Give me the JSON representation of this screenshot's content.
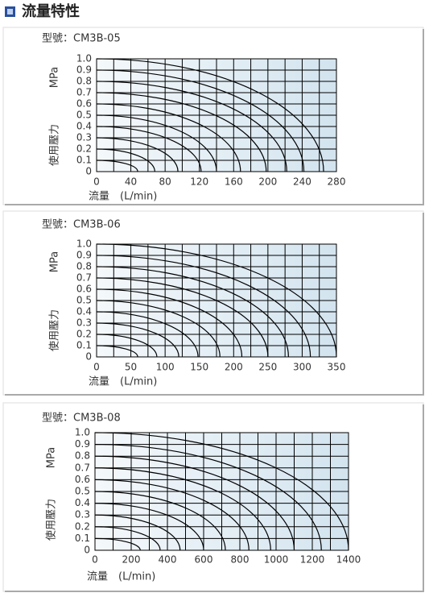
{
  "page": {
    "title": "流量特性"
  },
  "chart_data": [
    {
      "type": "line",
      "title": "型號：CM3B-05",
      "x_label": "流量　(L/min)",
      "y_unit": "MPa",
      "y_label": "使用壓力",
      "color": "#000000",
      "xlim": [
        0,
        280
      ],
      "xticks": [
        0,
        40,
        80,
        120,
        160,
        200,
        240,
        280
      ],
      "ylim": [
        0,
        1
      ],
      "yticks": [
        0,
        0.1,
        0.2,
        0.3,
        0.4,
        0.5,
        0.6,
        0.7,
        0.8,
        0.9,
        {
          "value": 1,
          "label": "1.0"
        }
      ],
      "grid": true,
      "series": [
        {
          "x": [
            0,
            48
          ],
          "values": [
            0.1,
            0
          ]
        },
        {
          "x": [
            0,
            68
          ],
          "values": [
            0.2,
            0
          ]
        },
        {
          "x": [
            0,
            95
          ],
          "values": [
            0.3,
            0
          ]
        },
        {
          "x": [
            0,
            122
          ],
          "values": [
            0.4,
            0
          ]
        },
        {
          "x": [
            0,
            140
          ],
          "values": [
            0.5,
            0
          ]
        },
        {
          "x": [
            0,
            168
          ],
          "values": [
            0.6,
            0
          ]
        },
        {
          "x": [
            0,
            198
          ],
          "values": [
            0.7,
            0
          ]
        },
        {
          "x": [
            0,
            222
          ],
          "values": [
            0.8,
            0
          ]
        },
        {
          "x": [
            0,
            242
          ],
          "values": [
            0.9,
            0
          ]
        },
        {
          "x": [
            0,
            265
          ],
          "values": [
            1,
            0
          ]
        }
      ]
    },
    {
      "type": "line",
      "title": "型號：CM3B-06",
      "x_label": "流量　(L/min)",
      "y_unit": "MPa",
      "y_label": "使用壓力",
      "color": "#000000",
      "xlim": [
        0,
        350
      ],
      "xticks": [
        0,
        50,
        100,
        150,
        200,
        250,
        300,
        350
      ],
      "ylim": [
        0,
        1
      ],
      "yticks": [
        0,
        0.1,
        0.2,
        0.3,
        0.4,
        0.5,
        0.6,
        0.7,
        0.8,
        0.9,
        {
          "value": 1,
          "label": "1.0"
        }
      ],
      "grid": true,
      "series": [
        {
          "x": [
            0,
            60
          ],
          "values": [
            0.1,
            0
          ]
        },
        {
          "x": [
            0,
            88
          ],
          "values": [
            0.2,
            0
          ]
        },
        {
          "x": [
            0,
            120
          ],
          "values": [
            0.3,
            0
          ]
        },
        {
          "x": [
            0,
            148
          ],
          "values": [
            0.4,
            0
          ]
        },
        {
          "x": [
            0,
            180
          ],
          "values": [
            0.5,
            0
          ]
        },
        {
          "x": [
            0,
            212
          ],
          "values": [
            0.6,
            0
          ]
        },
        {
          "x": [
            0,
            250
          ],
          "values": [
            0.7,
            0
          ]
        },
        {
          "x": [
            0,
            280
          ],
          "values": [
            0.8,
            0
          ]
        },
        {
          "x": [
            0,
            312
          ],
          "values": [
            0.9,
            0
          ]
        },
        {
          "x": [
            0,
            350
          ],
          "values": [
            1,
            0
          ]
        }
      ]
    },
    {
      "type": "line",
      "title": "型號：CM3B-08",
      "x_label": "流量　(L/min)",
      "y_unit": "MPa",
      "y_label": "使用壓力",
      "color": "#000000",
      "xlim": [
        0,
        1400
      ],
      "xticks": [
        0,
        200,
        400,
        600,
        800,
        1000,
        1200,
        1400
      ],
      "ylim": [
        0,
        1
      ],
      "yticks": [
        0,
        0.1,
        0.2,
        0.3,
        0.4,
        0.5,
        0.6,
        0.7,
        0.8,
        0.9,
        {
          "value": 1,
          "label": "1.0"
        }
      ],
      "grid": true,
      "series": [
        {
          "x": [
            0,
            250
          ],
          "values": [
            0.1,
            0
          ]
        },
        {
          "x": [
            0,
            360
          ],
          "values": [
            0.2,
            0
          ]
        },
        {
          "x": [
            0,
            470
          ],
          "values": [
            0.3,
            0
          ]
        },
        {
          "x": [
            0,
            600
          ],
          "values": [
            0.4,
            0
          ]
        },
        {
          "x": [
            0,
            720
          ],
          "values": [
            0.5,
            0
          ]
        },
        {
          "x": [
            0,
            850
          ],
          "values": [
            0.6,
            0
          ]
        },
        {
          "x": [
            0,
            970
          ],
          "values": [
            0.7,
            0
          ]
        },
        {
          "x": [
            0,
            1100
          ],
          "values": [
            0.8,
            0
          ]
        },
        {
          "x": [
            0,
            1250
          ],
          "values": [
            0.9,
            0
          ]
        },
        {
          "x": [
            0,
            1400
          ],
          "values": [
            1,
            0
          ]
        }
      ]
    }
  ]
}
